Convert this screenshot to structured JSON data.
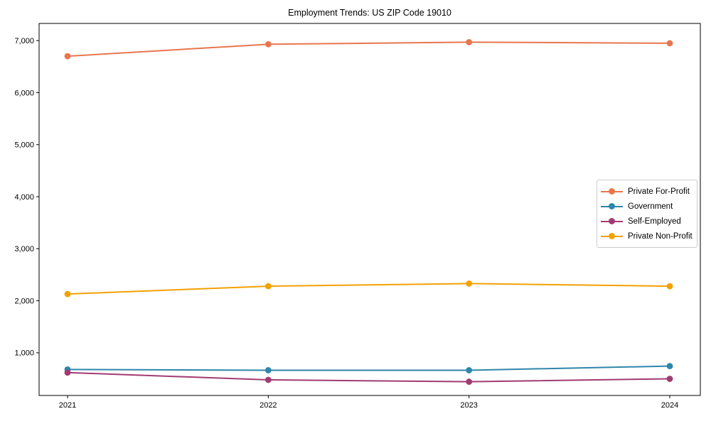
{
  "chart_data": {
    "type": "line",
    "title": "Employment Trends: US ZIP Code 19010",
    "xlabel": "",
    "ylabel": "",
    "grid": false,
    "legend_position": "center-right",
    "categories": [
      "2021",
      "2022",
      "2023",
      "2024"
    ],
    "series": [
      {
        "name": "Private For-Profit",
        "color": "#e8764e",
        "values": [
          6700,
          6930,
          6970,
          6950
        ]
      },
      {
        "name": "Government",
        "color": "#2e86ab",
        "values": [
          680,
          665,
          665,
          745
        ]
      },
      {
        "name": "Self-Employed",
        "color": "#a23b72",
        "values": [
          620,
          480,
          445,
          500
        ]
      },
      {
        "name": "Private Non-Profit",
        "color": "#f3a104",
        "values": [
          2130,
          2280,
          2330,
          2280
        ]
      }
    ],
    "yticks": {
      "values": [
        1000,
        2000,
        3000,
        4000,
        5000,
        6000,
        7000
      ],
      "labels": [
        "1,000",
        "2,000",
        "3,000",
        "4,000",
        "5,000",
        "6,000",
        "7,000"
      ]
    },
    "ylim": [
      180,
      7330
    ]
  }
}
